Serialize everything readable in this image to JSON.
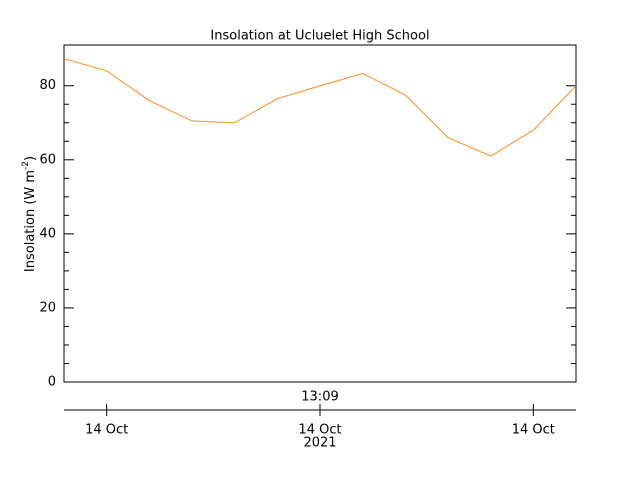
{
  "chart_data": {
    "type": "line",
    "title": "Insolation at Ucluelet High School",
    "y_label": "Insolation (W m",
    "y_label_exponent": "-2",
    "y_label_close": ")",
    "categories": [
      null,
      "14 Oct",
      null,
      null,
      null,
      null,
      "14 Oct",
      null,
      null,
      null,
      null,
      "14 Oct",
      null
    ],
    "time_label": "13:09",
    "year_label": "2021",
    "series": [
      {
        "color": "#ff8c1a",
        "values": [
          87.3,
          84,
          76,
          70.5,
          70,
          76.5,
          80,
          83.3,
          77.5,
          66,
          61,
          68,
          80
        ]
      }
    ],
    "ylim": [
      0,
      91
    ],
    "yticks": [
      0,
      20,
      40,
      60,
      80
    ]
  }
}
